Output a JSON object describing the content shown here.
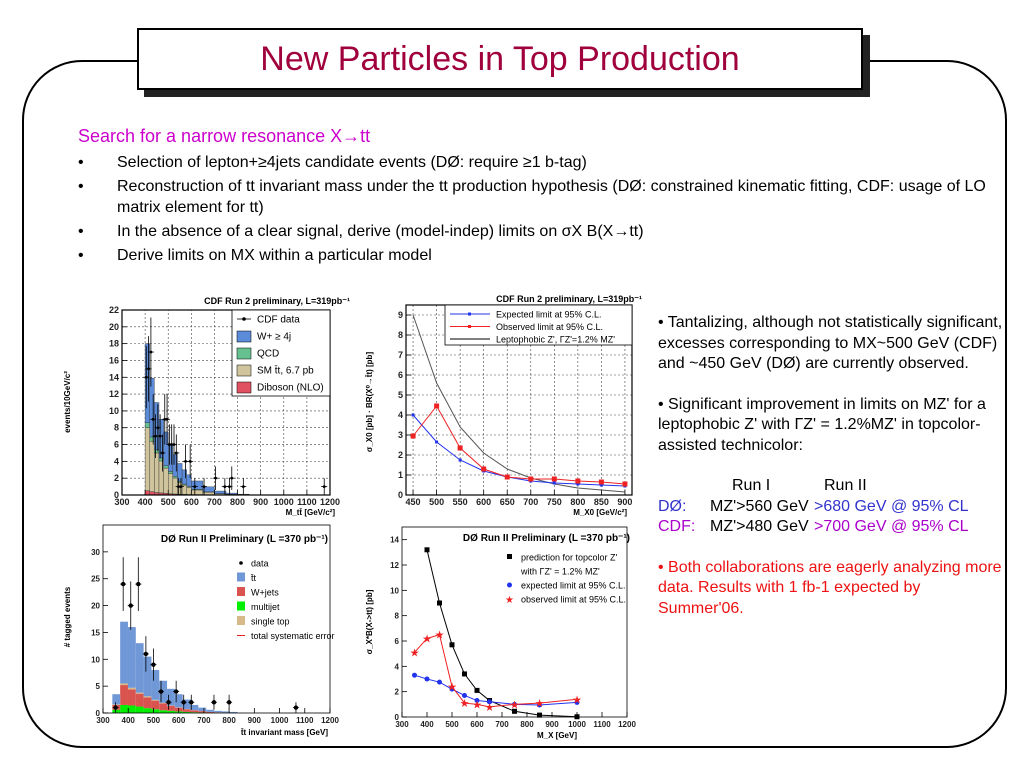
{
  "slide": {
    "title": "New Particles in Top Production",
    "heading": "Search for a narrow resonance X→tt",
    "bullets": [
      "Selection of lepton+≥4jets candidate events (DØ: require ≥1 b-tag)",
      "Reconstruction of tt invariant mass under the tt production hypothesis (DØ: constrained kinematic fitting, CDF: usage of LO matrix element for tt)",
      "In the absence of a clear signal, derive (model-indep) limits on σX B(X→tt)",
      "Derive limits on MX within a particular model"
    ],
    "bullet_symbol": "•",
    "right": {
      "p1": "•  Tantalizing, although not statistically significant, excesses corresponding to MX~500 GeV (CDF) and ~450 GeV (DØ) are currently observed.",
      "p2": "•  Significant improvement in limits on MZ' for a leptophobic Z' with ΓZ' = 1.2%MZ' in topcolor-assisted technicolor:",
      "table": {
        "col1": "Run I",
        "col2": "Run II",
        "rows": [
          {
            "exp": "DØ:",
            "run1": "MZ'>560 GeV",
            "run2": ">680 GeV @ 95% CL"
          },
          {
            "exp": "CDF:",
            "run1": "MZ'>480 GeV",
            "run2": ">700 GeV @ 95% CL"
          }
        ]
      },
      "p3": "•  Both collaborations are eagerly analyzing more data. Results with 1 fb-1 expected by Summer'06."
    },
    "colors": {
      "title": "#a0003c",
      "heading": "#cc00cc",
      "d0": "#3333cc",
      "cdf": "#aa00cc",
      "highlight": "#ee1111"
    }
  },
  "chart_data": [
    {
      "type": "bar",
      "title": "CDF Run 2 preliminary, L=319pb⁻¹",
      "xlabel": "M_tt̄ [GeV/c²]",
      "ylabel": "events/10GeV/c²",
      "xlim": [
        300,
        1200
      ],
      "ylim": [
        0,
        22
      ],
      "xticks": [
        300,
        400,
        500,
        600,
        700,
        800,
        900,
        1000,
        1100,
        1200
      ],
      "yticks": [
        0,
        2,
        4,
        6,
        8,
        10,
        12,
        14,
        16,
        18,
        20,
        22
      ],
      "grid": true,
      "legend_placement": "top-right",
      "legend_box": true,
      "bin_edges": [
        400,
        420,
        440,
        460,
        480,
        500,
        520,
        540,
        560,
        580,
        600,
        650,
        700,
        750,
        800,
        850
      ],
      "stack": [
        {
          "name": "Diboson (NLO)",
          "color": "#e05060",
          "values": [
            0.5,
            0.4,
            0.3,
            0.25,
            0.2,
            0.15,
            0.12,
            0.1,
            0.08,
            0.06,
            0.05,
            0.03,
            0.02,
            0.01,
            0.01
          ]
        },
        {
          "name": "SM t̄t, 6.7 pb",
          "color": "#cfc49c",
          "values": [
            7.5,
            6,
            4.7,
            3.8,
            3,
            2.4,
            1.9,
            1.4,
            1.1,
            0.85,
            0.55,
            0.3,
            0.13,
            0.06,
            0.02
          ]
        },
        {
          "name": "QCD",
          "color": "#66c090",
          "values": [
            0.6,
            0.5,
            0.4,
            0.35,
            0.3,
            0.25,
            0.2,
            0.15,
            0.12,
            0.1,
            0.07,
            0.04,
            0.02,
            0.01,
            0.01
          ]
        },
        {
          "name": "W+ ≥ 4j",
          "color": "#5b8bd9",
          "values": [
            9.4,
            7,
            5.6,
            4.6,
            4,
            3.2,
            2.6,
            2.1,
            1.7,
            1.4,
            1,
            0.6,
            0.3,
            0.15,
            0.06
          ]
        }
      ],
      "points": [
        {
          "name": "CDF data",
          "color": "#000000",
          "marker": "dot",
          "x": [
            405,
            415,
            425,
            435,
            445,
            455,
            465,
            475,
            485,
            495,
            505,
            515,
            525,
            535,
            545,
            555,
            575,
            595,
            615,
            655,
            705,
            745,
            765,
            775,
            825,
            1175
          ],
          "y": [
            14,
            15,
            17,
            9,
            7,
            8,
            7,
            5,
            9,
            9,
            6,
            6,
            6,
            5,
            1,
            1,
            4,
            4,
            1,
            1,
            2,
            1,
            1,
            2,
            1,
            1
          ],
          "err": [
            3.7,
            3.9,
            4.1,
            3,
            2.6,
            2.8,
            2.6,
            2.2,
            3,
            3,
            2.4,
            2.4,
            2.4,
            2.2,
            1,
            1,
            2,
            2,
            1,
            1,
            1.4,
            1,
            1,
            1.4,
            1,
            1
          ]
        }
      ],
      "legend": [
        {
          "label": "CDF data",
          "kind": "marker",
          "color": "#000000"
        },
        {
          "label": "W+ ≥ 4j",
          "kind": "fill",
          "color": "#5b8bd9"
        },
        {
          "label": "QCD",
          "kind": "fill",
          "color": "#66c090"
        },
        {
          "label": "SM t̄t, 6.7 pb",
          "kind": "fill",
          "color": "#cfc49c"
        },
        {
          "label": "Diboson (NLO)",
          "kind": "fill",
          "color": "#e05060"
        }
      ]
    },
    {
      "type": "line",
      "title": "CDF Run 2 preliminary, L=319pb⁻¹",
      "xlabel": "M_X0 [GeV/c²]",
      "ylabel": "σ_X0 [pb] · BR(X⁰→t̄t) [pb]",
      "xlim": [
        435,
        915
      ],
      "ylim": [
        0,
        9.5
      ],
      "xticks": [
        450,
        500,
        550,
        600,
        650,
        700,
        750,
        800,
        850,
        900
      ],
      "yticks": [
        0,
        1,
        2,
        3,
        4,
        5,
        6,
        7,
        8,
        9
      ],
      "grid": true,
      "legend_placement": "top-right",
      "legend_box": true,
      "series": [
        {
          "name": "Leptophobic Z', ΓZ'=1.2% MZ'",
          "color": "#555555",
          "marker": "none",
          "x": [
            450,
            500,
            550,
            600,
            650,
            700,
            750,
            800,
            850,
            900
          ],
          "y": [
            9.0,
            5.6,
            3.4,
            2.1,
            1.3,
            0.85,
            0.55,
            0.35,
            0.25,
            0.15
          ]
        },
        {
          "name": "Expected limit at 95% C.L.",
          "color": "#2233ee",
          "marker": "square-small",
          "x": [
            450,
            500,
            550,
            600,
            650,
            700,
            750,
            800,
            850,
            900
          ],
          "y": [
            4.0,
            2.65,
            1.75,
            1.2,
            0.9,
            0.7,
            0.6,
            0.55,
            0.5,
            0.45
          ]
        },
        {
          "name": "Observed limit at 95% C.L.",
          "color": "#ee2222",
          "marker": "square",
          "x": [
            450,
            500,
            550,
            600,
            650,
            700,
            750,
            800,
            850,
            900
          ],
          "y": [
            2.95,
            4.45,
            2.35,
            1.3,
            0.9,
            0.8,
            0.8,
            0.7,
            0.65,
            0.55
          ]
        }
      ],
      "legend": [
        {
          "label": "Expected limit at 95% C.L.",
          "kind": "line-marker",
          "color": "#2233ee"
        },
        {
          "label": "Observed limit at 95% C.L.",
          "kind": "line-marker",
          "color": "#ee2222"
        },
        {
          "label": "Leptophobic Z', ΓZ'=1.2% MZ'",
          "kind": "line",
          "color": "#555555"
        }
      ]
    },
    {
      "type": "bar",
      "title": "DØ Run II Preliminary",
      "title_suffix": "(L =370 pb⁻¹)",
      "xlabel": "t̄t invariant mass [GeV]",
      "ylabel": "# tagged events",
      "xlim": [
        300,
        1200
      ],
      "ylim": [
        0,
        35
      ],
      "xticks": [
        300,
        400,
        500,
        600,
        700,
        800,
        900,
        1000,
        1100,
        1200
      ],
      "yticks": [
        0,
        5,
        10,
        15,
        20,
        25,
        30
      ],
      "grid": false,
      "legend_placement": "top-right",
      "legend_box": false,
      "bin_edges": [
        337,
        368,
        399,
        430,
        461,
        492,
        523,
        554,
        585,
        616,
        647,
        678,
        709,
        740,
        771,
        802,
        833
      ],
      "stack": [
        {
          "name": "multijet",
          "color": "#00ee00",
          "values": [
            0.6,
            1.5,
            1.4,
            1.2,
            0.9,
            0.7,
            0.5,
            0.4,
            0.3,
            0.2,
            0.15,
            0.1,
            0.05,
            0.03,
            0.02,
            0.01
          ]
        },
        {
          "name": "W+jets",
          "color": "#d9534f",
          "values": [
            0.9,
            3.7,
            3,
            2.4,
            2,
            1.6,
            1.3,
            0.9,
            0.7,
            0.5,
            0.35,
            0.25,
            0.15,
            0.1,
            0.06,
            0.04
          ]
        },
        {
          "name": "single top",
          "color": "#d7b98a",
          "values": [
            0.1,
            0.3,
            0.3,
            0.2,
            0.2,
            0.15,
            0.1,
            0.1,
            0.05,
            0.05,
            0.03,
            0.02,
            0.01,
            0.01,
            0.01,
            0.01
          ]
        },
        {
          "name": "t̄t",
          "color": "#7097d6",
          "values": [
            1.9,
            11.5,
            11.3,
            9.2,
            7.4,
            5.55,
            4.1,
            3.1,
            2.45,
            1.75,
            0.97,
            0.63,
            0.39,
            0.26,
            0.21,
            0.14
          ]
        }
      ],
      "points": [
        {
          "name": "data",
          "color": "#000000",
          "marker": "dot",
          "x": [
            350,
            380,
            410,
            440,
            470,
            500,
            530,
            560,
            590,
            620,
            650,
            740,
            800,
            1065
          ],
          "y": [
            1,
            24,
            20,
            24,
            11,
            9,
            4,
            2,
            4,
            2,
            2,
            2,
            2,
            1
          ],
          "err": [
            1,
            5,
            4.5,
            5,
            3.3,
            3,
            2,
            1.4,
            2,
            1.4,
            1.4,
            1.4,
            1.4,
            1
          ]
        }
      ],
      "legend": [
        {
          "label": "data",
          "kind": "marker",
          "color": "#000000"
        },
        {
          "label": "t̄t",
          "kind": "fill",
          "color": "#7097d6"
        },
        {
          "label": "W+jets",
          "kind": "fill",
          "color": "#d9534f"
        },
        {
          "label": "multijet",
          "kind": "fill",
          "color": "#00ee00"
        },
        {
          "label": "single top",
          "kind": "fill",
          "color": "#d7b98a"
        },
        {
          "label": "total systematic error",
          "kind": "line",
          "color": "#ee2222"
        }
      ]
    },
    {
      "type": "line",
      "title": "DØ Run II Preliminary",
      "title_suffix": "(L =370 pb⁻¹)",
      "xlabel": "M_X [GeV]",
      "ylabel": "σ_X*B(X->tt)  [pb]",
      "xlim": [
        300,
        1200
      ],
      "ylim": [
        0,
        15
      ],
      "xticks": [
        300,
        400,
        500,
        600,
        700,
        800,
        900,
        1000,
        1100,
        1200
      ],
      "yticks": [
        0,
        2,
        4,
        6,
        8,
        10,
        12,
        14
      ],
      "grid": false,
      "legend_placement": "top-right",
      "legend_box": false,
      "series": [
        {
          "name": "prediction for topcolor Z' with ΓZ' = 1.2% MZ'",
          "color": "#000000",
          "marker": "square",
          "x": [
            400,
            450,
            500,
            550,
            600,
            650,
            750,
            850,
            1000
          ],
          "y": [
            13.2,
            9.0,
            5.7,
            3.4,
            2.1,
            1.3,
            0.45,
            0.15,
            0.02
          ]
        },
        {
          "name": "expected limit at 95% C.L.",
          "color": "#2233ee",
          "marker": "circle",
          "x": [
            350,
            400,
            450,
            500,
            550,
            600,
            650,
            750,
            850,
            1000
          ],
          "y": [
            3.3,
            3.0,
            2.75,
            2.2,
            1.7,
            1.3,
            1.2,
            1.0,
            0.95,
            1.15
          ]
        },
        {
          "name": "observed limit at 95% C.L.",
          "color": "#ee2222",
          "marker": "star",
          "x": [
            350,
            400,
            450,
            500,
            550,
            600,
            650,
            750,
            850,
            1000
          ],
          "y": [
            5.1,
            6.2,
            6.5,
            2.4,
            1.1,
            1.0,
            0.8,
            1.0,
            1.1,
            1.4
          ]
        }
      ],
      "legend": [
        {
          "label": "prediction for topcolor Z'",
          "kind": "square",
          "color": "#000000"
        },
        {
          "label": "with ΓZ' = 1.2% MZ'",
          "kind": "none",
          "color": "#000000"
        },
        {
          "label": "expected limit at 95% C.L.",
          "kind": "circle",
          "color": "#2233ee"
        },
        {
          "label": "observed limit at 95% C.L.",
          "kind": "star",
          "color": "#ee2222"
        }
      ]
    }
  ]
}
